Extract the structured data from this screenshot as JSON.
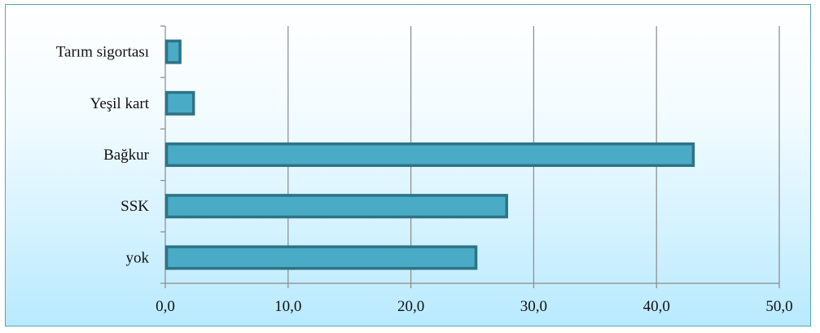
{
  "chart_data": {
    "type": "bar",
    "orientation": "horizontal",
    "title": "",
    "xlabel": "",
    "ylabel": "",
    "categories": [
      "Tarım sigortası",
      "Yeşil kart",
      "Bağkur",
      "SSK",
      "yok"
    ],
    "values": [
      1.2,
      2.3,
      43.0,
      27.8,
      25.3
    ],
    "xlim": [
      0,
      50
    ],
    "x_ticks": [
      "0,0",
      "10,0",
      "20,0",
      "30,0",
      "40,0",
      "50,0"
    ],
    "grid": "vertical",
    "legend": "none",
    "colors": {
      "bar_fill": "#4aabc6",
      "bar_stroke": "#2d7387",
      "grid": "#8a8a8a",
      "axis": "#8a8a8a",
      "frame": "#56a6b7"
    }
  }
}
